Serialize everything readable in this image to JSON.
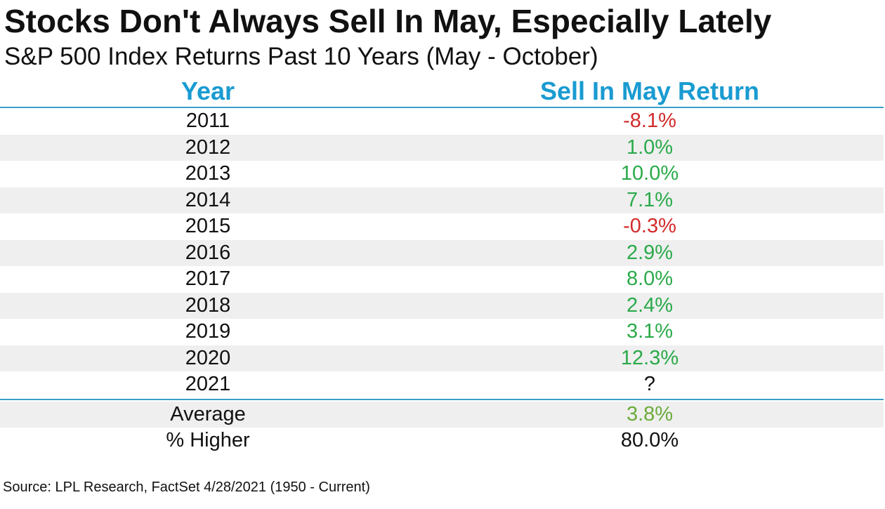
{
  "chart_data": {
    "type": "table",
    "title": "Stocks Don't Always Sell In May, Especially Lately",
    "subtitle": "S&P 500 Index Returns Past 10 Years (May - October)",
    "columns": [
      "Year",
      "Sell In May Return"
    ],
    "rows": [
      {
        "year": "2011",
        "return": "-8.1%",
        "value": -8.1
      },
      {
        "year": "2012",
        "return": "1.0%",
        "value": 1.0
      },
      {
        "year": "2013",
        "return": "10.0%",
        "value": 10.0
      },
      {
        "year": "2014",
        "return": "7.1%",
        "value": 7.1
      },
      {
        "year": "2015",
        "return": "-0.3%",
        "value": -0.3
      },
      {
        "year": "2016",
        "return": "2.9%",
        "value": 2.9
      },
      {
        "year": "2017",
        "return": "8.0%",
        "value": 8.0
      },
      {
        "year": "2018",
        "return": "2.4%",
        "value": 2.4
      },
      {
        "year": "2019",
        "return": "3.1%",
        "value": 3.1
      },
      {
        "year": "2020",
        "return": "12.3%",
        "value": 12.3
      },
      {
        "year": "2021",
        "return": "?",
        "value": null
      }
    ],
    "summary": [
      {
        "label": "Average",
        "value": "3.8%"
      },
      {
        "label": "% Higher",
        "value": "80.0%"
      }
    ],
    "source": "Source: LPL Research, FactSet 4/28/2021 (1950 - Current)"
  },
  "colors": {
    "header": "#1a9bd1",
    "rule": "#3aa0c8",
    "negative": "#d22b2b",
    "positive": "#2aaa4a",
    "average": "#6bab3b",
    "stripe": "#efefef"
  }
}
